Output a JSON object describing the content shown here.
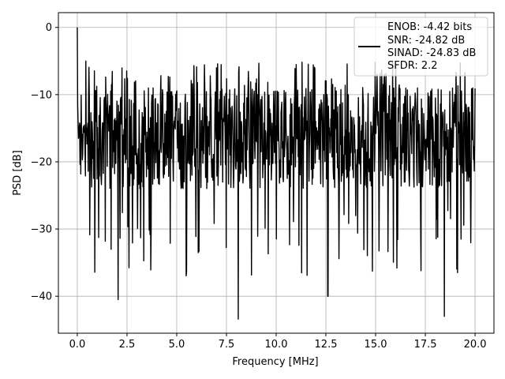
{
  "chart_data": {
    "type": "line",
    "xlabel": "Frequency [MHz]",
    "ylabel": "PSD [dB]",
    "xlim": [
      -0.95,
      20.95
    ],
    "ylim": [
      -45.5,
      2.2
    ],
    "xticks": [
      0,
      2.5,
      5,
      7.5,
      10,
      12.5,
      15,
      17.5,
      20
    ],
    "xtick_labels": [
      "0.0",
      "2.5",
      "5.0",
      "7.5",
      "10.0",
      "12.5",
      "15.0",
      "17.5",
      "20.0"
    ],
    "yticks": [
      0,
      -10,
      -20,
      -30,
      -40
    ],
    "ytick_labels": [
      "0",
      "−10",
      "−20",
      "−30",
      "−40"
    ],
    "grid": true,
    "legend_position": "top-right",
    "legend_lines": [
      "ENOB: -4.42 bits",
      "SNR: -24.82 dB",
      "SINAD: -24.83 dB",
      "SFDR: 2.2"
    ],
    "series": [
      {
        "color": "#000000",
        "description": "dense noise spectrum from 0 to 20 MHz",
        "x_range": [
          0,
          20
        ],
        "points": 1024,
        "peak": {
          "x": 0.0,
          "y": 0.0
        },
        "typical_upper": -9,
        "typical_lower": -24,
        "minima": [
          {
            "x": 2.05,
            "y": -40.5
          },
          {
            "x": 8.1,
            "y": -43.4
          },
          {
            "x": 12.6,
            "y": -40.0
          },
          {
            "x": 18.45,
            "y": -43.0
          }
        ]
      }
    ]
  }
}
